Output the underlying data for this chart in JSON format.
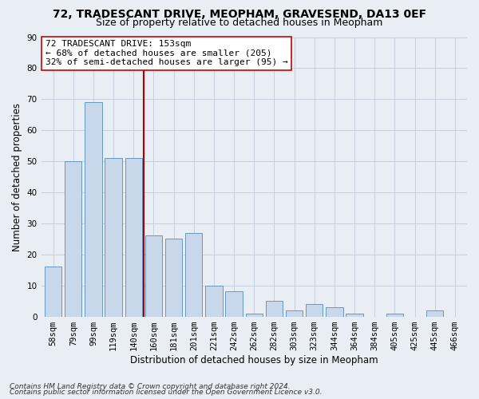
{
  "title": "72, TRADESCANT DRIVE, MEOPHAM, GRAVESEND, DA13 0EF",
  "subtitle": "Size of property relative to detached houses in Meopham",
  "xlabel": "Distribution of detached houses by size in Meopham",
  "ylabel": "Number of detached properties",
  "categories": [
    "58sqm",
    "79sqm",
    "99sqm",
    "119sqm",
    "140sqm",
    "160sqm",
    "181sqm",
    "201sqm",
    "221sqm",
    "242sqm",
    "262sqm",
    "282sqm",
    "303sqm",
    "323sqm",
    "344sqm",
    "364sqm",
    "384sqm",
    "405sqm",
    "425sqm",
    "445sqm",
    "466sqm"
  ],
  "values": [
    16,
    50,
    69,
    51,
    51,
    26,
    25,
    27,
    10,
    8,
    1,
    5,
    2,
    4,
    3,
    1,
    0,
    1,
    0,
    2,
    0
  ],
  "bar_color": "#c8d8ea",
  "bar_edge_color": "#6898c0",
  "ylim": [
    0,
    90
  ],
  "yticks": [
    0,
    10,
    20,
    30,
    40,
    50,
    60,
    70,
    80,
    90
  ],
  "vline_position": 4.5,
  "vline_color": "#aa0000",
  "annotation_text": "72 TRADESCANT DRIVE: 153sqm\n← 68% of detached houses are smaller (205)\n32% of semi-detached houses are larger (95) →",
  "footer_line1": "Contains HM Land Registry data © Crown copyright and database right 2024.",
  "footer_line2": "Contains public sector information licensed under the Open Government Licence v3.0.",
  "bg_color": "#e8eef4",
  "grid_color": "#c0cad8",
  "title_fontsize": 10,
  "subtitle_fontsize": 9,
  "axis_label_fontsize": 8.5,
  "tick_fontsize": 7.5,
  "annotation_fontsize": 8,
  "footer_fontsize": 6.5
}
